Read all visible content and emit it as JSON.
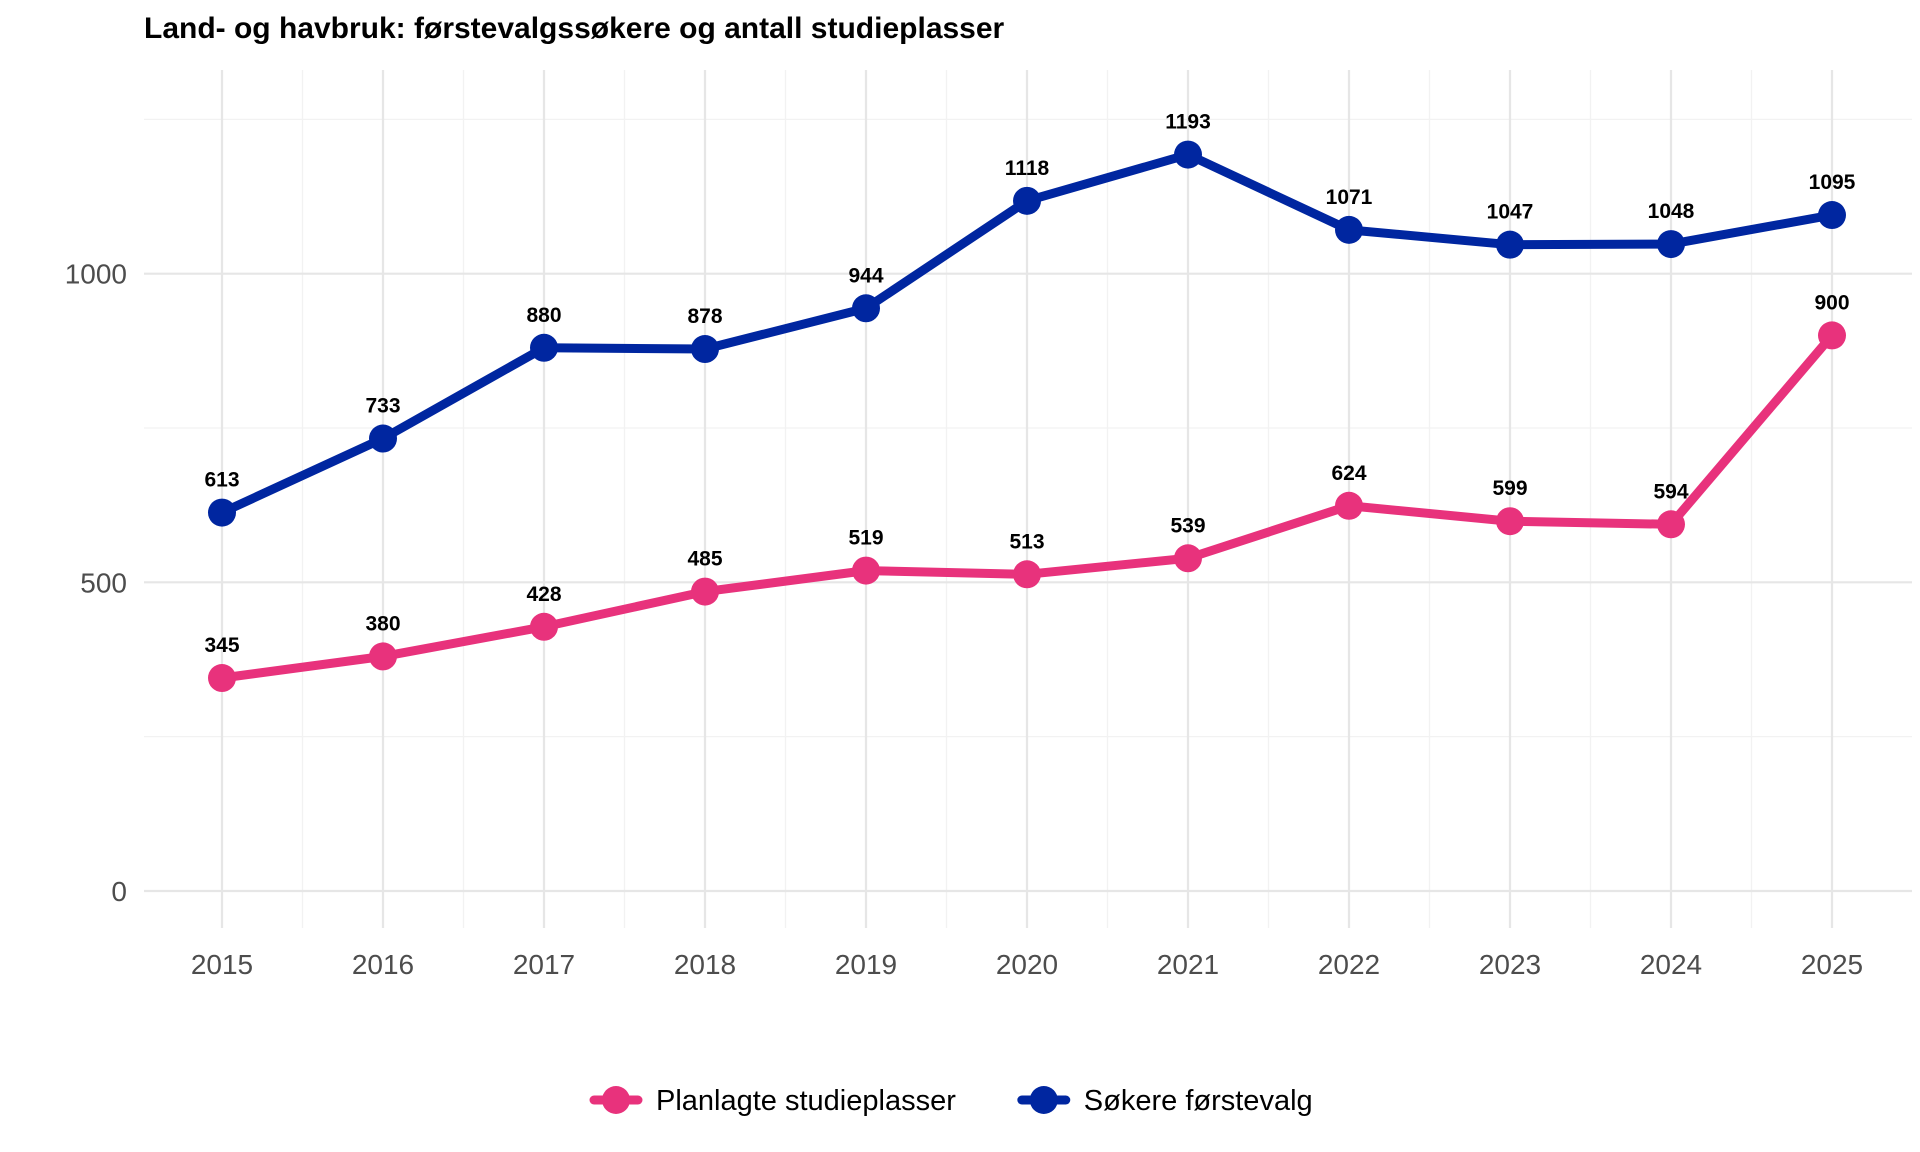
{
  "chart_data": {
    "type": "line",
    "title": "Land- og havbruk: førstevalgssøkere og antall studieplasser",
    "xlabel": "",
    "ylabel": "",
    "x": [
      "2015",
      "2016",
      "2017",
      "2018",
      "2019",
      "2020",
      "2021",
      "2022",
      "2023",
      "2024",
      "2025"
    ],
    "ylim": [
      -60,
      1330
    ],
    "yticks": [
      0,
      500,
      1000
    ],
    "grid": true,
    "legend_position": "bottom",
    "series": [
      {
        "name": "Planlagte studieplasser",
        "color": "#E8327C",
        "values": [
          345,
          380,
          428,
          485,
          519,
          513,
          539,
          624,
          599,
          594,
          900
        ]
      },
      {
        "name": "Søkere førstevalg",
        "color": "#0026A0",
        "values": [
          613,
          733,
          880,
          878,
          944,
          1118,
          1193,
          1071,
          1047,
          1048,
          1095
        ]
      }
    ]
  }
}
